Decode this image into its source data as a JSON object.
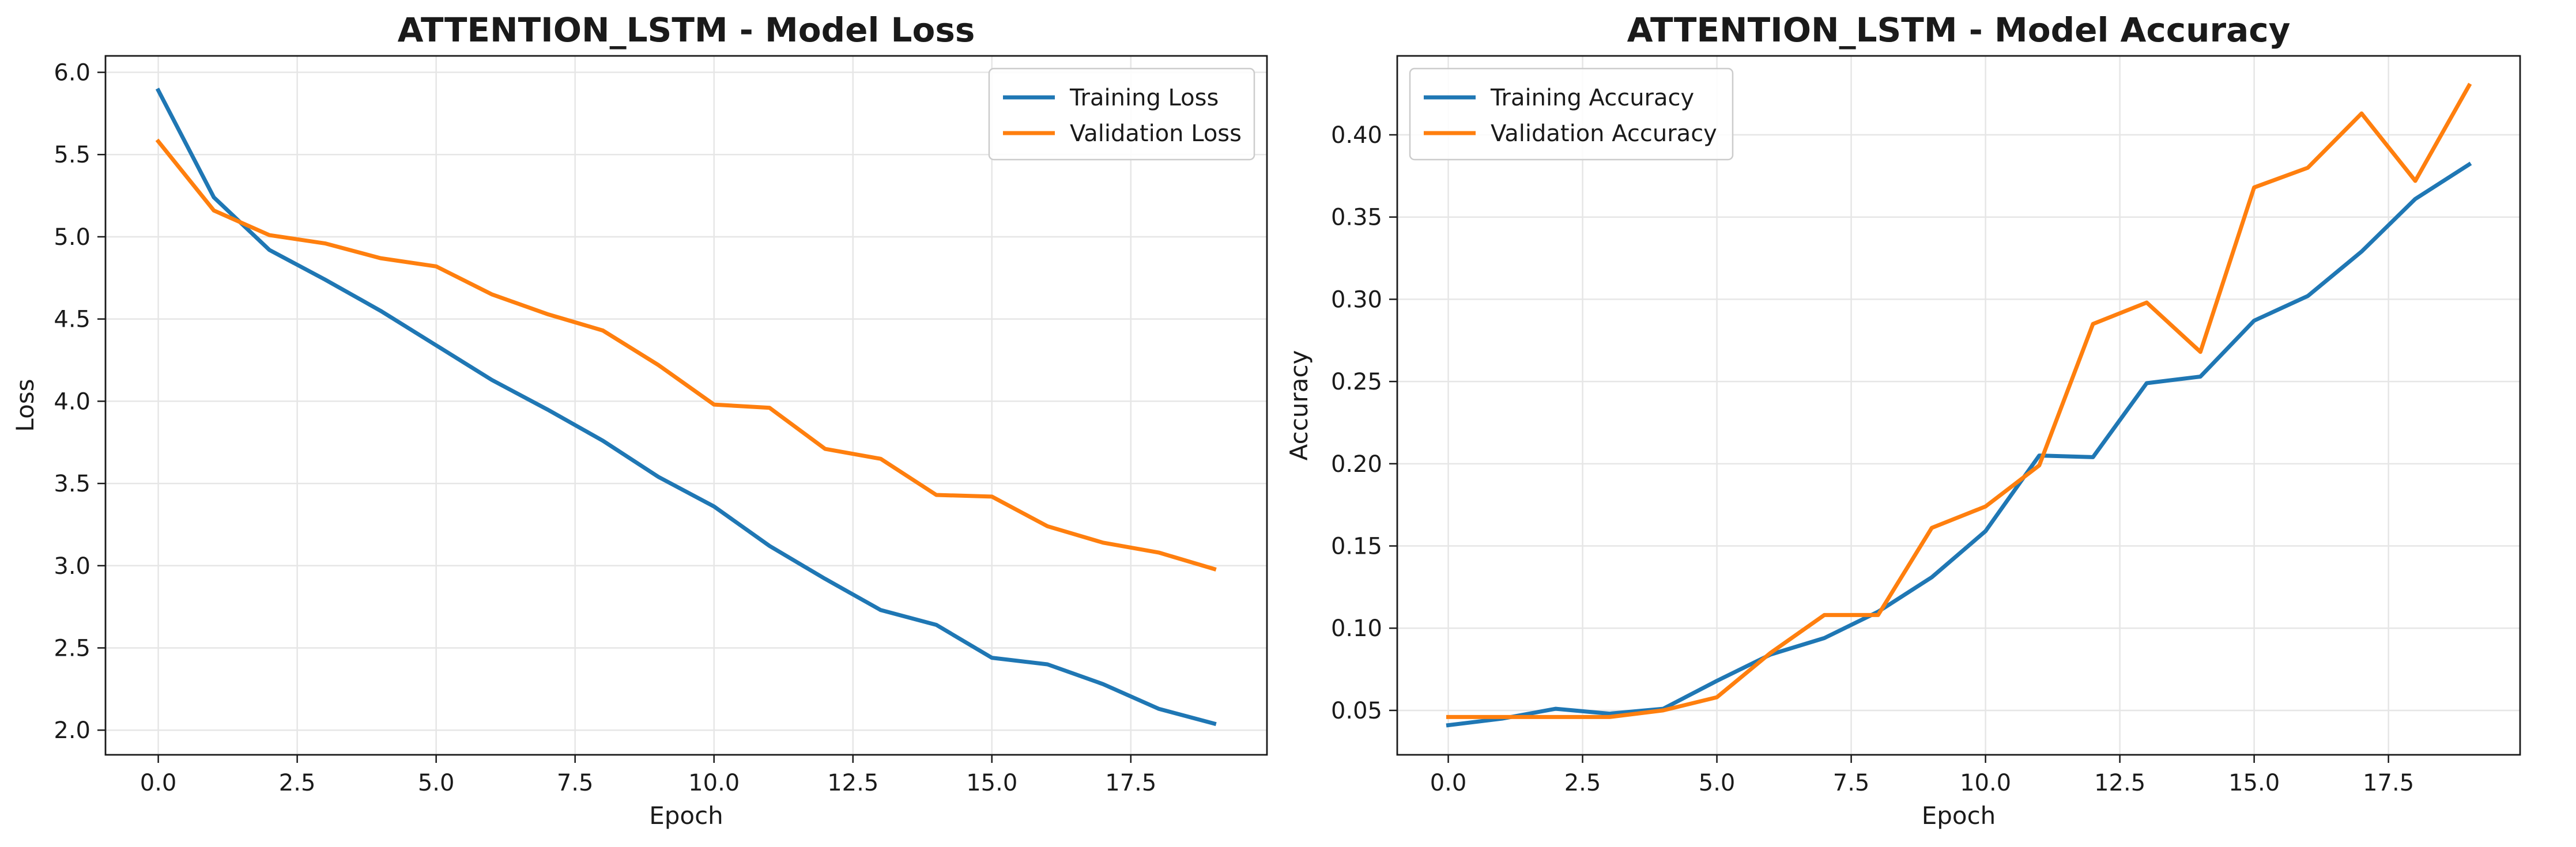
{
  "chart_data": [
    {
      "type": "line",
      "title": "ATTENTION_LSTM - Model Loss",
      "xlabel": "Epoch",
      "ylabel": "Loss",
      "xlim": [
        -0.95,
        19.95
      ],
      "ylim": [
        1.85,
        6.1
      ],
      "xticks": [
        0,
        2.5,
        5,
        7.5,
        10,
        12.5,
        15,
        17.5
      ],
      "xtick_labels": [
        "0.0",
        "2.5",
        "5.0",
        "7.5",
        "10.0",
        "12.5",
        "15.0",
        "17.5"
      ],
      "yticks": [
        2.0,
        2.5,
        3.0,
        3.5,
        4.0,
        4.5,
        5.0,
        5.5,
        6.0
      ],
      "ytick_labels": [
        "2.0",
        "2.5",
        "3.0",
        "3.5",
        "4.0",
        "4.5",
        "5.0",
        "5.5",
        "6.0"
      ],
      "grid": true,
      "legend_position": "top-right",
      "x": [
        0,
        1,
        2,
        3,
        4,
        5,
        6,
        7,
        8,
        9,
        10,
        11,
        12,
        13,
        14,
        15,
        16,
        17,
        18,
        19
      ],
      "series": [
        {
          "name": "Training Loss",
          "color": "#1f77b4",
          "values": [
            5.89,
            5.24,
            4.92,
            4.74,
            4.55,
            4.34,
            4.13,
            3.95,
            3.76,
            3.54,
            3.36,
            3.12,
            2.92,
            2.73,
            2.64,
            2.44,
            2.4,
            2.28,
            2.13,
            2.04
          ]
        },
        {
          "name": "Validation Loss",
          "color": "#ff7f0e",
          "values": [
            5.58,
            5.16,
            5.01,
            4.96,
            4.87,
            4.82,
            4.65,
            4.53,
            4.43,
            4.22,
            3.98,
            3.96,
            3.71,
            3.65,
            3.43,
            3.42,
            3.24,
            3.14,
            3.08,
            2.98
          ]
        }
      ]
    },
    {
      "type": "line",
      "title": "ATTENTION_LSTM - Model Accuracy",
      "xlabel": "Epoch",
      "ylabel": "Accuracy",
      "xlim": [
        -0.95,
        19.95
      ],
      "ylim": [
        0.023,
        0.448
      ],
      "xticks": [
        0,
        2.5,
        5,
        7.5,
        10,
        12.5,
        15,
        17.5
      ],
      "xtick_labels": [
        "0.0",
        "2.5",
        "5.0",
        "7.5",
        "10.0",
        "12.5",
        "15.0",
        "17.5"
      ],
      "yticks": [
        0.05,
        0.1,
        0.15,
        0.2,
        0.25,
        0.3,
        0.35,
        0.4
      ],
      "ytick_labels": [
        "0.05",
        "0.10",
        "0.15",
        "0.20",
        "0.25",
        "0.30",
        "0.35",
        "0.40"
      ],
      "grid": true,
      "legend_position": "top-left",
      "x": [
        0,
        1,
        2,
        3,
        4,
        5,
        6,
        7,
        8,
        9,
        10,
        11,
        12,
        13,
        14,
        15,
        16,
        17,
        18,
        19
      ],
      "series": [
        {
          "name": "Training Accuracy",
          "color": "#1f77b4",
          "values": [
            0.041,
            0.045,
            0.051,
            0.048,
            0.051,
            0.068,
            0.084,
            0.094,
            0.11,
            0.131,
            0.159,
            0.205,
            0.204,
            0.249,
            0.253,
            0.287,
            0.302,
            0.329,
            0.361,
            0.382
          ]
        },
        {
          "name": "Validation Accuracy",
          "color": "#ff7f0e",
          "values": [
            0.046,
            0.046,
            0.046,
            0.046,
            0.05,
            0.058,
            0.085,
            0.108,
            0.108,
            0.161,
            0.174,
            0.199,
            0.285,
            0.298,
            0.268,
            0.368,
            0.38,
            0.413,
            0.372,
            0.43
          ]
        }
      ]
    }
  ]
}
